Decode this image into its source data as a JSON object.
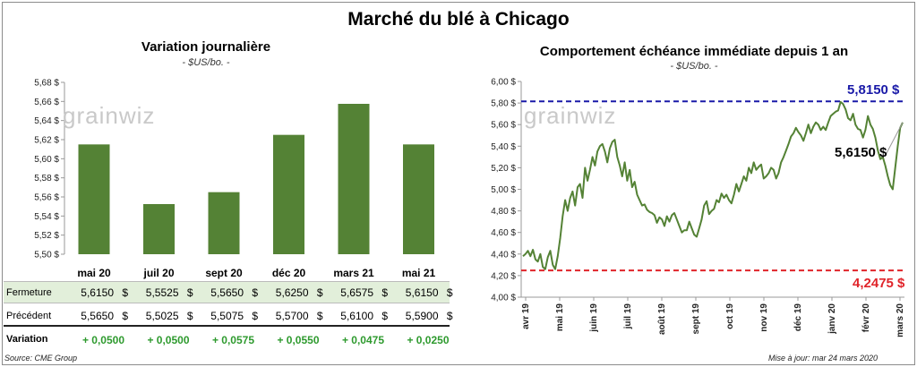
{
  "title": "Marché du blé à Chicago",
  "watermark": "grainwiz",
  "source": "Source: CME Group",
  "updated": "Mise à jour: mar 24 mars 2020",
  "colors": {
    "bar": "#548235",
    "line": "#548235",
    "max_line": "#1a1aa8",
    "min_line": "#e0242a",
    "table_highlight": "#e2efda",
    "positive": "#2e9a2e"
  },
  "table": {
    "rows": [
      {
        "label": "Fermeture",
        "values": [
          "5,6150",
          "5,5525",
          "5,5650",
          "5,6250",
          "5,6575",
          "5,6150"
        ],
        "suffix": "$"
      },
      {
        "label": "Précédent",
        "values": [
          "5,5650",
          "5,5025",
          "5,5075",
          "5,5700",
          "5,6100",
          "5,5900"
        ],
        "suffix": "$"
      },
      {
        "label": "Variation",
        "values": [
          "+ 0,0500",
          "+ 0,0500",
          "+ 0,0575",
          "+ 0,0550",
          "+ 0,0475",
          "+ 0,0250"
        ]
      }
    ]
  },
  "chart_data": [
    {
      "type": "bar",
      "title": "Variation journalière",
      "subtitle": "- $US/bo. -",
      "categories": [
        "mai 20",
        "juil 20",
        "sept 20",
        "déc 20",
        "mars 21",
        "mai 21"
      ],
      "values": [
        5.615,
        5.5525,
        5.565,
        5.625,
        5.6575,
        5.615
      ],
      "ylim": [
        5.5,
        5.68
      ],
      "yticks": [
        "5,50 $",
        "5,52 $",
        "5,54 $",
        "5,56 $",
        "5,58 $",
        "5,60 $",
        "5,62 $",
        "5,64 $",
        "5,66 $",
        "5,68 $"
      ],
      "grid": false
    },
    {
      "type": "line",
      "title": "Comportement échéance immédiate depuis 1 an",
      "subtitle": "- $US/bo. -",
      "ylim": [
        4.0,
        6.0
      ],
      "yticks": [
        "4,00 $",
        "4,20 $",
        "4,40 $",
        "4,60 $",
        "4,80 $",
        "5,00 $",
        "5,20 $",
        "5,40 $",
        "5,60 $",
        "5,80 $",
        "6,00 $"
      ],
      "xticks": [
        "avr 19",
        "mai 19",
        "juin 19",
        "juil 19",
        "août 19",
        "sept 19",
        "oct 19",
        "nov 19",
        "déc 19",
        "janv 20",
        "févr 20",
        "mars 20"
      ],
      "max_label": "5,8150 $",
      "min_label": "4,2475 $",
      "last_label": "5,6150 $",
      "max_value": 5.815,
      "min_value": 4.2475,
      "series": [
        {
          "values": [
            4.38,
            4.4,
            4.43,
            4.38,
            4.44,
            4.35,
            4.33,
            4.4,
            4.28,
            4.26,
            4.37,
            4.43,
            4.3,
            4.26,
            4.38,
            4.55,
            4.75,
            4.9,
            4.8,
            4.92,
            4.98,
            4.85,
            5.02,
            5.05,
            4.92,
            5.2,
            5.08,
            5.18,
            5.3,
            5.22,
            5.35,
            5.4,
            5.42,
            5.35,
            5.25,
            5.38,
            5.44,
            5.46,
            5.3,
            5.22,
            5.12,
            5.25,
            5.08,
            5.18,
            5.02,
            5.07,
            4.95,
            4.9,
            4.85,
            4.86,
            4.81,
            4.79,
            4.78,
            4.76,
            4.69,
            4.74,
            4.72,
            4.66,
            4.75,
            4.7,
            4.76,
            4.78,
            4.72,
            4.66,
            4.6,
            4.62,
            4.62,
            4.7,
            4.64,
            4.58,
            4.56,
            4.64,
            4.72,
            4.85,
            4.89,
            4.77,
            4.8,
            4.82,
            4.9,
            4.88,
            4.96,
            4.92,
            4.95,
            4.9,
            4.87,
            4.95,
            5.05,
            4.98,
            5.05,
            5.12,
            5.08,
            5.2,
            5.15,
            5.25,
            5.18,
            5.21,
            5.23,
            5.1,
            5.12,
            5.15,
            5.2,
            5.18,
            5.1,
            5.15,
            5.25,
            5.3,
            5.36,
            5.42,
            5.49,
            5.52,
            5.57,
            5.53,
            5.5,
            5.45,
            5.52,
            5.6,
            5.52,
            5.58,
            5.62,
            5.6,
            5.55,
            5.58,
            5.55,
            5.62,
            5.68,
            5.7,
            5.72,
            5.73,
            5.81,
            5.79,
            5.74,
            5.66,
            5.64,
            5.7,
            5.6,
            5.56,
            5.55,
            5.48,
            5.55,
            5.68,
            5.6,
            5.56,
            5.48,
            5.36,
            5.28,
            5.3,
            5.22,
            5.12,
            5.04,
            5.0,
            5.2,
            5.4,
            5.57,
            5.62
          ]
        }
      ]
    }
  ]
}
